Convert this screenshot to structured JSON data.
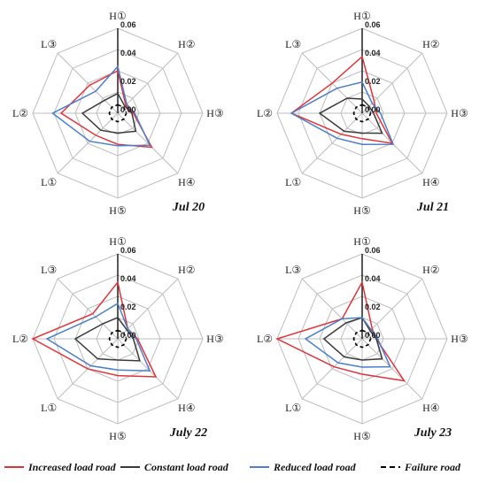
{
  "chart_data": [
    {
      "type": "radar",
      "title": "Jul 20",
      "axes": [
        "H①",
        "H②",
        "H③",
        "H④",
        "H⑤",
        "L①",
        "L②",
        "L③"
      ],
      "rlim": [
        0,
        0.06
      ],
      "ticks": [
        "0.00",
        "0.02",
        "0.04",
        "0.06"
      ],
      "series": [
        {
          "name": "Increased load road",
          "values": [
            0.03,
            0.008,
            0.011,
            0.034,
            0.022,
            0.022,
            0.04,
            0.028
          ]
        },
        {
          "name": "Constant load road",
          "values": [
            0.014,
            0.007,
            0.01,
            0.018,
            0.014,
            0.017,
            0.025,
            0.013
          ]
        },
        {
          "name": "Reduced load road",
          "values": [
            0.033,
            0.009,
            0.012,
            0.032,
            0.023,
            0.028,
            0.046,
            0.022
          ]
        },
        {
          "name": "Failure road",
          "values": [
            0.006,
            0.006,
            0.006,
            0.006,
            0.006,
            0.006,
            0.006,
            0.006
          ]
        }
      ]
    },
    {
      "type": "radar",
      "title": "Jul 21",
      "axes": [
        "H①",
        "H②",
        "H③",
        "H④",
        "H⑤",
        "L①",
        "L②",
        "L③"
      ],
      "rlim": [
        0,
        0.06
      ],
      "ticks": [
        "0.00",
        "0.02",
        "0.04",
        "0.06"
      ],
      "series": [
        {
          "name": "Increased load road",
          "values": [
            0.04,
            0.012,
            0.01,
            0.03,
            0.018,
            0.021,
            0.05,
            0.03
          ]
        },
        {
          "name": "Constant load road",
          "values": [
            0.01,
            0.007,
            0.008,
            0.02,
            0.014,
            0.018,
            0.03,
            0.015
          ]
        },
        {
          "name": "Reduced load road",
          "values": [
            0.022,
            0.01,
            0.013,
            0.031,
            0.022,
            0.025,
            0.05,
            0.025
          ]
        },
        {
          "name": "Failure road",
          "values": [
            0.006,
            0.006,
            0.006,
            0.006,
            0.006,
            0.006,
            0.006,
            0.006
          ]
        }
      ]
    },
    {
      "type": "radar",
      "title": "July 22",
      "axes": [
        "H①",
        "H②",
        "H③",
        "H④",
        "H⑤",
        "L①",
        "L②",
        "L③"
      ],
      "rlim": [
        0,
        0.06
      ],
      "ticks": [
        "0.00",
        "0.02",
        "0.04",
        "0.06"
      ],
      "series": [
        {
          "name": "Increased load road",
          "values": [
            0.04,
            0.01,
            0.014,
            0.038,
            0.026,
            0.03,
            0.06,
            0.025
          ]
        },
        {
          "name": "Constant load road",
          "values": [
            0.015,
            0.009,
            0.011,
            0.022,
            0.015,
            0.02,
            0.03,
            0.015
          ]
        },
        {
          "name": "Reduced load road",
          "values": [
            0.025,
            0.01,
            0.013,
            0.032,
            0.022,
            0.027,
            0.05,
            0.022
          ]
        },
        {
          "name": "Failure road",
          "values": [
            0.006,
            0.006,
            0.006,
            0.006,
            0.006,
            0.006,
            0.006,
            0.006
          ]
        }
      ]
    },
    {
      "type": "radar",
      "title": "July 23",
      "axes": [
        "H①",
        "H②",
        "H③",
        "H④",
        "H⑤",
        "L①",
        "L②",
        "L③"
      ],
      "rlim": [
        0,
        0.06
      ],
      "ticks": [
        "0.00",
        "0.02",
        "0.04",
        "0.06"
      ],
      "series": [
        {
          "name": "Increased load road",
          "values": [
            0.04,
            0.01,
            0.01,
            0.042,
            0.025,
            0.028,
            0.06,
            0.02
          ]
        },
        {
          "name": "Constant load road",
          "values": [
            0.015,
            0.008,
            0.01,
            0.02,
            0.015,
            0.018,
            0.027,
            0.016
          ]
        },
        {
          "name": "Reduced load road",
          "values": [
            0.015,
            0.009,
            0.011,
            0.028,
            0.02,
            0.024,
            0.04,
            0.02
          ]
        },
        {
          "name": "Failure road",
          "values": [
            0.006,
            0.006,
            0.006,
            0.006,
            0.006,
            0.006,
            0.006,
            0.006
          ]
        }
      ]
    }
  ],
  "legend": [
    {
      "label": "Increased load road",
      "color": "#e0343b",
      "style": "solid"
    },
    {
      "label": "Constant load road",
      "color": "#3a3a3a",
      "style": "solid"
    },
    {
      "label": "Reduced load road",
      "color": "#4a7fc9",
      "style": "solid"
    },
    {
      "label": "Failure road",
      "color": "#000000",
      "style": "dashed"
    }
  ],
  "colors": {
    "grid": "#bdbdbd",
    "axis": "#111111"
  }
}
